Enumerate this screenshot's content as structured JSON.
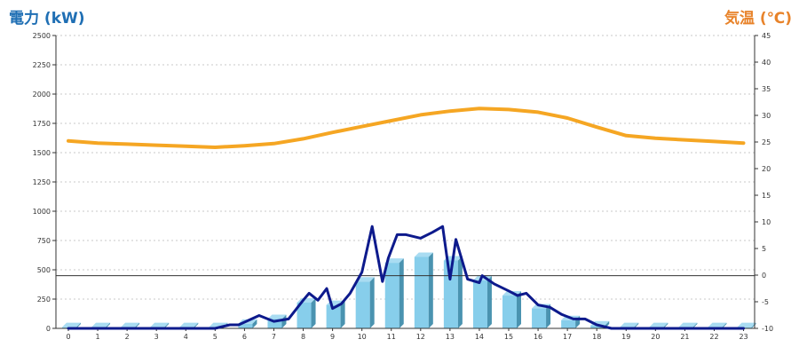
{
  "header": {
    "left_title": "電力 (kW)",
    "right_title": "気温 (℃)"
  },
  "chart_data": {
    "type": "bar",
    "colors": {
      "bar_front": "#87ceeb",
      "bar_side": "#4a93b0",
      "bar_top": "#a9dcf2",
      "power_line": "#0d1a8c",
      "temp_line": "#f5a623",
      "left_title": "#1f6fb4",
      "right_title": "#e8832a"
    },
    "x_ticks": [
      "0",
      "1",
      "2",
      "3",
      "4",
      "5",
      "6",
      "7",
      "8",
      "9",
      "10",
      "11",
      "12",
      "13",
      "14",
      "15",
      "16",
      "17",
      "18",
      "19",
      "20",
      "21",
      "22",
      "23"
    ],
    "y_left": {
      "label": "電力 (kW)",
      "ticks": [
        "0",
        "250",
        "500",
        "750",
        "1000",
        "1250",
        "1500",
        "1750",
        "2000",
        "2250",
        "2500"
      ],
      "range": [
        0,
        2500
      ]
    },
    "y_right": {
      "label": "気温 (℃)",
      "ticks": [
        "-10",
        "-5",
        "0",
        "5",
        "10",
        "15",
        "20",
        "25",
        "30",
        "35",
        "40",
        "45"
      ],
      "range": [
        -10,
        45
      ]
    },
    "bars": {
      "categories": [
        "0",
        "1",
        "2",
        "3",
        "4",
        "5",
        "6",
        "7",
        "8",
        "9",
        "10",
        "11",
        "12",
        "13",
        "14",
        "15",
        "16",
        "17",
        "18",
        "19",
        "20",
        "21",
        "22",
        "23"
      ],
      "values": [
        10,
        10,
        10,
        10,
        10,
        10,
        40,
        80,
        220,
        200,
        400,
        560,
        610,
        580,
        410,
        280,
        170,
        70,
        25,
        10,
        10,
        10,
        10,
        10
      ]
    },
    "power_line": {
      "x": [
        0,
        1,
        2,
        3,
        4,
        5,
        5.5,
        5.8,
        6.5,
        7,
        7.5,
        8,
        8.2,
        8.5,
        8.8,
        9,
        9.3,
        9.6,
        10,
        10.35,
        10.7,
        10.9,
        11.2,
        11.5,
        12,
        12.4,
        12.75,
        13,
        13.2,
        13.6,
        14,
        14.1,
        14.5,
        15,
        15.3,
        15.6,
        16,
        16.4,
        16.8,
        17.2,
        17.6,
        18,
        18.5,
        19,
        20,
        21,
        22,
        23
      ],
      "values": [
        0,
        0,
        0,
        0,
        0,
        0,
        30,
        30,
        110,
        60,
        80,
        240,
        300,
        240,
        340,
        170,
        210,
        300,
        480,
        870,
        400,
        600,
        800,
        800,
        770,
        820,
        870,
        420,
        760,
        420,
        390,
        450,
        380,
        320,
        280,
        300,
        200,
        180,
        120,
        80,
        80,
        30,
        0,
        0,
        0,
        0,
        0,
        0
      ]
    },
    "temp_line": {
      "x": [
        0,
        1,
        2,
        3,
        4,
        5,
        6,
        7,
        8,
        9,
        10,
        11,
        12,
        13,
        14,
        15,
        16,
        17,
        18,
        19,
        20,
        21,
        22,
        23
      ],
      "values": [
        25.2,
        24.8,
        24.6,
        24.4,
        24.2,
        24.0,
        24.3,
        24.7,
        25.6,
        26.8,
        27.9,
        29.0,
        30.1,
        30.8,
        31.3,
        31.1,
        30.6,
        29.5,
        27.8,
        26.2,
        25.7,
        25.4,
        25.1,
        24.8
      ]
    },
    "reference_line": {
      "y_left": 450
    },
    "grid": true
  }
}
